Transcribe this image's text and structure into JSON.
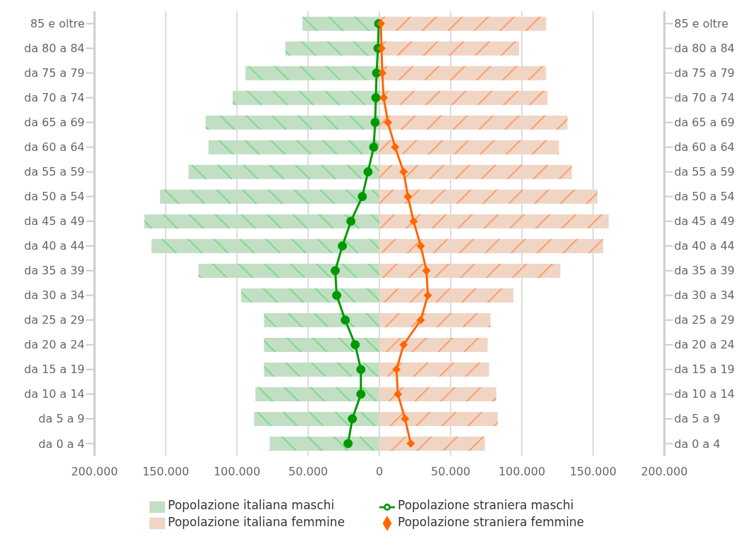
{
  "chart_data": {
    "type": "bar",
    "orientation": "horizontal",
    "categories": [
      "85 e oltre",
      "da 80 a 84",
      "da 75 a 79",
      "da 70 a 74",
      "da 65 a 69",
      "da 60 a 64",
      "da 55 a 59",
      "da 50 a 54",
      "da 45 a 49",
      "da 40 a 44",
      "da 35 a 39",
      "da 30 a 34",
      "da 25 a 29",
      "da 20 a 24",
      "da 15 a 19",
      "da 10 a 14",
      "da 5 a 9",
      "da 0 a 4"
    ],
    "series": [
      {
        "name": "Popolazione italiana maschi",
        "type": "bar",
        "color": "#c2dfc5",
        "values": [
          -54000,
          -66000,
          -94000,
          -103000,
          -122000,
          -120000,
          -134000,
          -154000,
          -165000,
          -160000,
          -127000,
          -97000,
          -81000,
          -81000,
          -81000,
          -87000,
          -88000,
          -77000
        ]
      },
      {
        "name": "Popolazione italiana femmine",
        "type": "bar",
        "color": "#f0d5c5",
        "values": [
          117000,
          98000,
          117000,
          118000,
          132000,
          126000,
          135000,
          153000,
          161000,
          157000,
          127000,
          94000,
          78000,
          76000,
          77000,
          82000,
          83000,
          74000
        ]
      },
      {
        "name": "Popolazione straniera maschi",
        "type": "line",
        "color": "#009900",
        "marker": "circle",
        "values": [
          -500,
          -1000,
          -2000,
          -2500,
          -3000,
          -4000,
          -8000,
          -12000,
          -20000,
          -26000,
          -31000,
          -30000,
          -24000,
          -17000,
          -13000,
          -13000,
          -19000,
          -22000
        ]
      },
      {
        "name": "Popolazione straniera femmine",
        "type": "line",
        "color": "#ff6600",
        "marker": "diamond",
        "values": [
          1000,
          1500,
          2000,
          3000,
          6000,
          11000,
          17000,
          20000,
          24000,
          29000,
          33000,
          34000,
          29000,
          17000,
          12000,
          13000,
          18000,
          22000
        ]
      }
    ],
    "xlim": [
      -200000,
      200000
    ],
    "xticks": [
      {
        "value": -200000,
        "label": "200.000"
      },
      {
        "value": -150000,
        "label": "150.000"
      },
      {
        "value": -100000,
        "label": "100.000"
      },
      {
        "value": -50000,
        "label": "50.000"
      },
      0,
      {
        "value": 50000,
        "label": "50.000"
      },
      {
        "value": 100000,
        "label": "100.000"
      },
      {
        "value": 150000,
        "label": "150.000"
      },
      {
        "value": 200000,
        "label": "200.000"
      }
    ],
    "stacked": true,
    "grid": "x",
    "legend": "bottom",
    "line_style": "solid"
  }
}
